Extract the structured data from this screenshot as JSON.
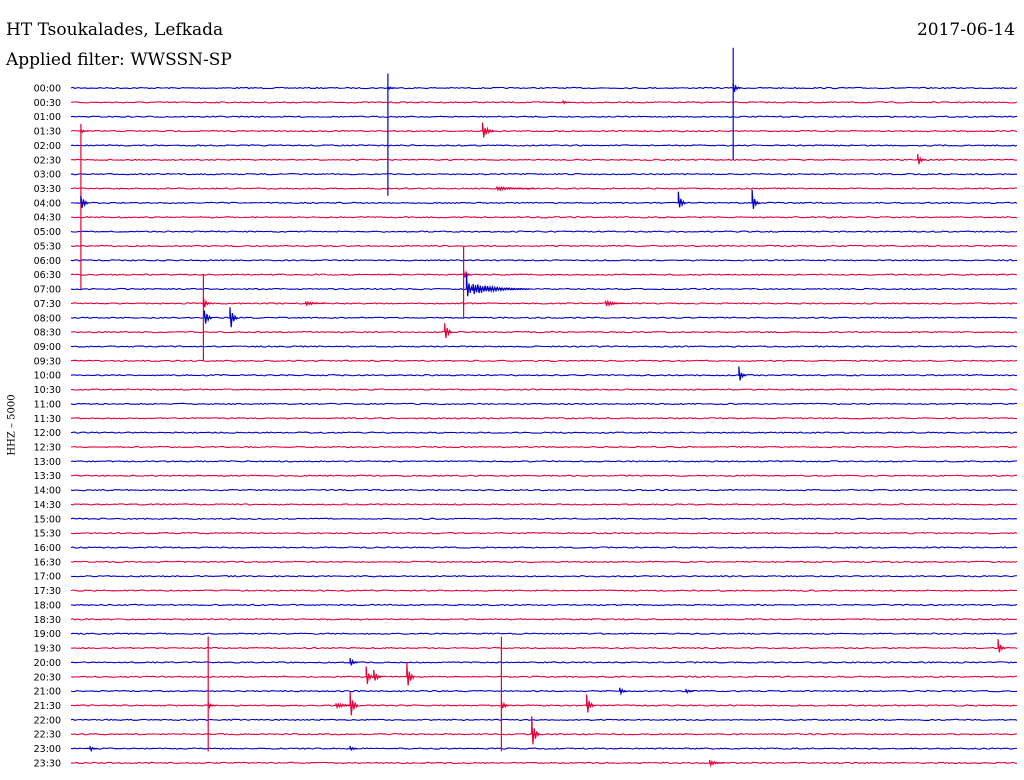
{
  "header": {
    "station": "HT Tsoukalades, Lefkada",
    "filter": "Applied filter: WWSSN-SP",
    "date": "2017-06-14"
  },
  "colors": {
    "series_a": "#0000c8",
    "series_b": "#e8003a"
  },
  "chart_data": {
    "type": "line",
    "title": "HT Tsoukalades, Lefkada",
    "subtitle": "Applied filter: WWSSN-SP",
    "date": "2017-06-14",
    "ylabel": "HHZ – 5000",
    "xlabel": "",
    "grid": false,
    "rows": [
      "00:00",
      "00:30",
      "01:00",
      "01:30",
      "02:00",
      "02:30",
      "03:00",
      "03:30",
      "04:00",
      "04:30",
      "05:00",
      "05:30",
      "06:00",
      "06:30",
      "07:00",
      "07:30",
      "08:00",
      "08:30",
      "09:00",
      "09:30",
      "10:00",
      "10:30",
      "11:00",
      "11:30",
      "12:00",
      "12:30",
      "13:00",
      "13:30",
      "14:00",
      "14:30",
      "15:00",
      "15:30",
      "16:00",
      "16:30",
      "17:00",
      "17:30",
      "18:00",
      "18:30",
      "19:00",
      "19:30",
      "20:00",
      "20:30",
      "21:00",
      "21:30",
      "22:00",
      "22:30",
      "23:00",
      "23:30"
    ],
    "row_colors": [
      "blue",
      "red"
    ],
    "events": [
      {
        "row": 0,
        "x": 0.7,
        "amp": 0.3,
        "spike": true,
        "up": 2.8,
        "down": 5.0
      },
      {
        "row": 0,
        "x": 0.335,
        "amp": 0.1,
        "spike": true,
        "up": 1.0,
        "down": 7.5
      },
      {
        "row": 1,
        "x": 0.52,
        "amp": 0.1
      },
      {
        "row": 3,
        "x": 0.435,
        "amp": 0.45,
        "width": 0.012
      },
      {
        "row": 3,
        "x": 0.0105,
        "amp": 0.1,
        "spike": true,
        "up": 0.5,
        "down": 11.0
      },
      {
        "row": 5,
        "x": 0.895,
        "amp": 0.35
      },
      {
        "row": 7,
        "x": 0.45,
        "amp": 0.1,
        "width": 0.04
      },
      {
        "row": 8,
        "x": 0.642,
        "amp": 0.55
      },
      {
        "row": 8,
        "x": 0.72,
        "amp": 0.65
      },
      {
        "row": 8,
        "x": 0.0105,
        "amp": 0.5
      },
      {
        "row": 13,
        "x": 0.415,
        "amp": 0.3,
        "spike": true,
        "up": 2.0,
        "down": 3.0
      },
      {
        "row": 14,
        "x": 0.425,
        "amp": 0.3,
        "width": 0.06
      },
      {
        "row": 14,
        "x": 0.418,
        "amp": 0.85
      },
      {
        "row": 15,
        "x": 0.248,
        "amp": 0.12,
        "width": 0.02
      },
      {
        "row": 15,
        "x": 0.565,
        "amp": 0.15,
        "width": 0.02
      },
      {
        "row": 15,
        "x": 0.14,
        "amp": 0.3,
        "spike": true,
        "up": 2.0,
        "down": 4.0
      },
      {
        "row": 16,
        "x": 0.141,
        "amp": 0.55
      },
      {
        "row": 16,
        "x": 0.168,
        "amp": 0.75
      },
      {
        "row": 17,
        "x": 0.395,
        "amp": 0.6
      },
      {
        "row": 20,
        "x": 0.706,
        "amp": 0.45
      },
      {
        "row": 39,
        "x": 0.98,
        "amp": 0.45
      },
      {
        "row": 40,
        "x": 0.295,
        "amp": 0.25
      },
      {
        "row": 41,
        "x": 0.312,
        "amp": 0.55
      },
      {
        "row": 41,
        "x": 0.32,
        "amp": 0.45
      },
      {
        "row": 41,
        "x": 0.355,
        "amp": 0.9
      },
      {
        "row": 42,
        "x": 0.58,
        "amp": 0.2
      },
      {
        "row": 42,
        "x": 0.65,
        "amp": 0.15
      },
      {
        "row": 43,
        "x": 0.145,
        "amp": 0.2,
        "spike": true,
        "up": 4.8,
        "down": 3.2
      },
      {
        "row": 43,
        "x": 0.455,
        "amp": 0.3,
        "spike": true,
        "up": 4.8,
        "down": 3.2
      },
      {
        "row": 43,
        "x": 0.295,
        "amp": 1.0
      },
      {
        "row": 43,
        "x": 0.28,
        "amp": 0.15,
        "width": 0.02
      },
      {
        "row": 43,
        "x": 0.545,
        "amp": 0.65
      },
      {
        "row": 45,
        "x": 0.487,
        "amp": 1.2
      },
      {
        "row": 46,
        "x": 0.02,
        "amp": 0.15
      },
      {
        "row": 46,
        "x": 0.295,
        "amp": 0.15
      },
      {
        "row": 47,
        "x": 0.675,
        "amp": 0.15,
        "width": 0.015
      }
    ]
  }
}
